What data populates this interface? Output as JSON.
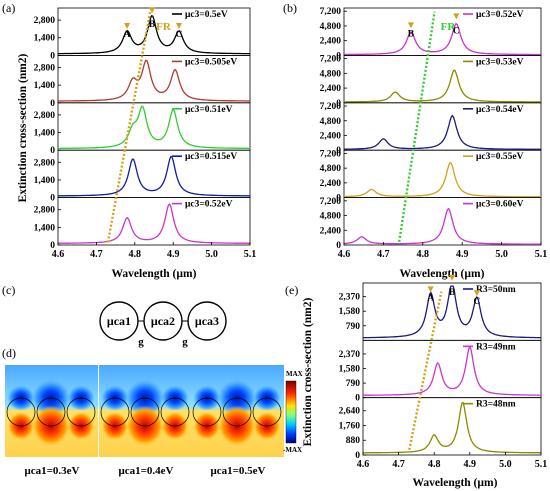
{
  "figure": {
    "panel_labels": {
      "a": "(a)",
      "b": "(b)",
      "c": "(c)",
      "d": "(d)",
      "e": "(e)"
    }
  },
  "colors": {
    "black": "#000000",
    "red": "#b03a2e",
    "green": "#33cc33",
    "blue": "#0b1fa8",
    "magenta": "#cc33cc",
    "olive": "#8b8b00",
    "navy": "#1a1a80",
    "orange": "#d4a017",
    "green_fr": "#33cc33"
  },
  "chart_data": [
    {
      "id": "a",
      "type": "line",
      "ylabel": "Extinction cross-section (nm2)",
      "xlabel": "Wavelength (µm)",
      "xlim": [
        4.6,
        5.1
      ],
      "xticks": [
        "4.6",
        "4.7",
        "4.8",
        "4.9",
        "5.0",
        "5.1"
      ],
      "yticks": [
        "0",
        "1,400",
        "2,800"
      ],
      "ylim": [
        0,
        3600
      ],
      "trend_label": "FR",
      "trend_color": "orange",
      "peak_labels": [
        "A",
        "B",
        "C"
      ],
      "series": [
        {
          "name": "μc3=0.5eV",
          "color": "black",
          "peaks": [
            [
              4.78,
              1700
            ],
            [
              4.845,
              2900
            ],
            [
              4.915,
              1700
            ]
          ]
        },
        {
          "name": "μc3=0.505eV",
          "color": "red",
          "peaks": [
            [
              4.795,
              1400
            ],
            [
              4.83,
              3000
            ],
            [
              4.905,
              2400
            ]
          ]
        },
        {
          "name": "μc3=0.51eV",
          "color": "green",
          "peaks": [
            [
              4.795,
              1200
            ],
            [
              4.82,
              3000
            ],
            [
              4.9,
              3000
            ]
          ]
        },
        {
          "name": "μc3=0.515eV",
          "color": "blue",
          "peaks": [
            [
              4.795,
              2900
            ],
            [
              4.895,
              3100
            ]
          ]
        },
        {
          "name": "μc3=0.52eV",
          "color": "magenta",
          "peaks": [
            [
              4.78,
              2000
            ],
            [
              4.89,
              3100
            ]
          ]
        }
      ],
      "trend_points": [
        [
          4.73,
          200
        ],
        [
          4.84,
          3300
        ]
      ]
    },
    {
      "id": "b",
      "type": "line",
      "ylabel": "",
      "xlabel": "Wavelength (µm)",
      "xlim": [
        4.6,
        5.1
      ],
      "xticks": [
        "4.6",
        "4.7",
        "4.8",
        "4.9",
        "5.0",
        "5.1"
      ],
      "yticks": [
        "0",
        "2,400",
        "4,800",
        "7,200"
      ],
      "ylim": [
        0,
        7400
      ],
      "trend_label": "FR",
      "trend_color": "green_fr",
      "peak_labels": [
        "B",
        "C"
      ],
      "series": [
        {
          "name": "μc3=0.52eV",
          "color": "magenta",
          "peaks": [
            [
              4.77,
              3600
            ],
            [
              4.885,
              5000
            ]
          ]
        },
        {
          "name": "μc3=0.53eV",
          "color": "olive",
          "peaks": [
            [
              4.73,
              1600
            ],
            [
              4.88,
              5200
            ]
          ]
        },
        {
          "name": "μc3=0.54eV",
          "color": "navy",
          "peaks": [
            [
              4.7,
              1700
            ],
            [
              4.875,
              5500
            ]
          ]
        },
        {
          "name": "μc3=0.55eV",
          "color": "orange",
          "peaks": [
            [
              4.67,
              1200
            ],
            [
              4.87,
              5600
            ]
          ]
        },
        {
          "name": "μc3=0.60eV",
          "color": "magenta",
          "peaks": [
            [
              4.645,
              1200
            ],
            [
              4.865,
              5800
            ]
          ]
        }
      ],
      "trend_points": [
        [
          4.74,
          500
        ],
        [
          4.83,
          6800
        ]
      ]
    },
    {
      "id": "e",
      "type": "line",
      "ylabel": "Extinction cross-section (nm2)",
      "xlabel": "Wavelength (µm)",
      "xlim": [
        4.6,
        5.1
      ],
      "xticks": [
        "4.6",
        "4.7",
        "4.8",
        "4.9",
        "5.0",
        "5.1"
      ],
      "peak_labels": [
        "A",
        "B",
        "C"
      ],
      "series": [
        {
          "name": "R3=50nm",
          "color": "navy",
          "yticks": [
            "790",
            "1,580",
            "2,370"
          ],
          "ylim": [
            0,
            3000
          ],
          "peaks": [
            [
              4.79,
              2300
            ],
            [
              4.85,
              2900
            ],
            [
              4.92,
              2100
            ]
          ]
        },
        {
          "name": "R3=49nm",
          "color": "magenta",
          "yticks": [
            "0",
            "790",
            "1,580",
            "2,370"
          ],
          "ylim": [
            0,
            3000
          ],
          "peaks": [
            [
              4.81,
              1700
            ],
            [
              4.9,
              2600
            ]
          ]
        },
        {
          "name": "R3=48nm",
          "color": "olive",
          "yticks": [
            "0",
            "880",
            "1,760",
            "2,640"
          ],
          "ylim": [
            0,
            3300
          ],
          "peaks": [
            [
              4.8,
              1000
            ],
            [
              4.88,
              3000
            ]
          ]
        }
      ],
      "trend_points": [
        [
          4.73,
          300
        ],
        [
          4.82,
          2800
        ]
      ]
    }
  ],
  "schematic": {
    "particles": [
      "μca1",
      "μca2",
      "μca3"
    ],
    "gap_label": "g"
  },
  "field_maps": {
    "colorbar_max": "MAX",
    "colorbar_min": "-MAX",
    "captions": [
      "μca1=0.3eV",
      "μca1=0.4eV",
      "μca1=0.5eV"
    ]
  }
}
